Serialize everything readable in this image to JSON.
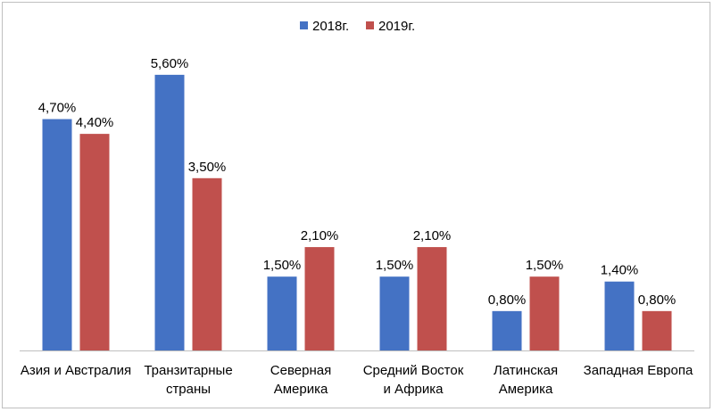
{
  "chart_data": {
    "type": "bar",
    "title": "",
    "xlabel": "",
    "ylabel": "",
    "ylim": [
      0,
      6.2
    ],
    "grid": false,
    "legend": "top-center",
    "categories": [
      [
        "Азия и Австралия"
      ],
      [
        "Транзитарные",
        "страны"
      ],
      [
        "Северная",
        "Америка"
      ],
      [
        "Средний Восток",
        "и Африка"
      ],
      [
        "Латинская",
        "Америка"
      ],
      [
        "Западная Европа"
      ]
    ],
    "series": [
      {
        "name": "2018г.",
        "color": "#4472c4",
        "values": [
          4.7,
          5.6,
          1.5,
          1.5,
          0.8,
          1.4
        ],
        "labels": [
          "4,70%",
          "5,60%",
          "1,50%",
          "1,50%",
          "0,80%",
          "1,40%"
        ]
      },
      {
        "name": "2019г.",
        "color": "#c0504d",
        "values": [
          4.4,
          3.5,
          2.1,
          2.1,
          1.5,
          0.8
        ],
        "labels": [
          "4,40%",
          "3,50%",
          "2,10%",
          "2,10%",
          "1,50%",
          "0,80%"
        ]
      }
    ]
  }
}
